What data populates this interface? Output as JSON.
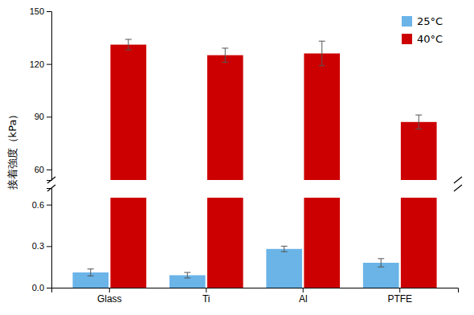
{
  "chart_data": [
    {
      "type": "bar",
      "ylabel": "接着強度（kPa）",
      "categories": [
        "Glass",
        "Ti",
        "Al",
        "PTFE"
      ],
      "series": [
        {
          "name": "40°C",
          "color": "#cc0000",
          "values": [
            131,
            125,
            126,
            87
          ],
          "error": [
            3,
            4,
            7,
            4
          ]
        }
      ],
      "ylim": [
        54,
        150
      ],
      "yticks": [
        60,
        90,
        120,
        150
      ],
      "tick_labels": "y"
    },
    {
      "type": "bar",
      "categories": [
        "Glass",
        "Ti",
        "Al",
        "PTFE"
      ],
      "series": [
        {
          "name": "25°C",
          "color": "#6ab4e8",
          "values": [
            0.11,
            0.09,
            0.28,
            0.18
          ],
          "error": [
            0.025,
            0.02,
            0.02,
            0.03
          ]
        },
        {
          "name": "40°C",
          "color": "#cc0000",
          "values": [
            0.65,
            0.65,
            0.65,
            0.65
          ]
        }
      ],
      "ylim": [
        0,
        0.72
      ],
      "yticks": [
        {
          "value": 0,
          "label": "0.0"
        },
        0.3,
        0.6
      ],
      "legend": "upper right"
    }
  ]
}
